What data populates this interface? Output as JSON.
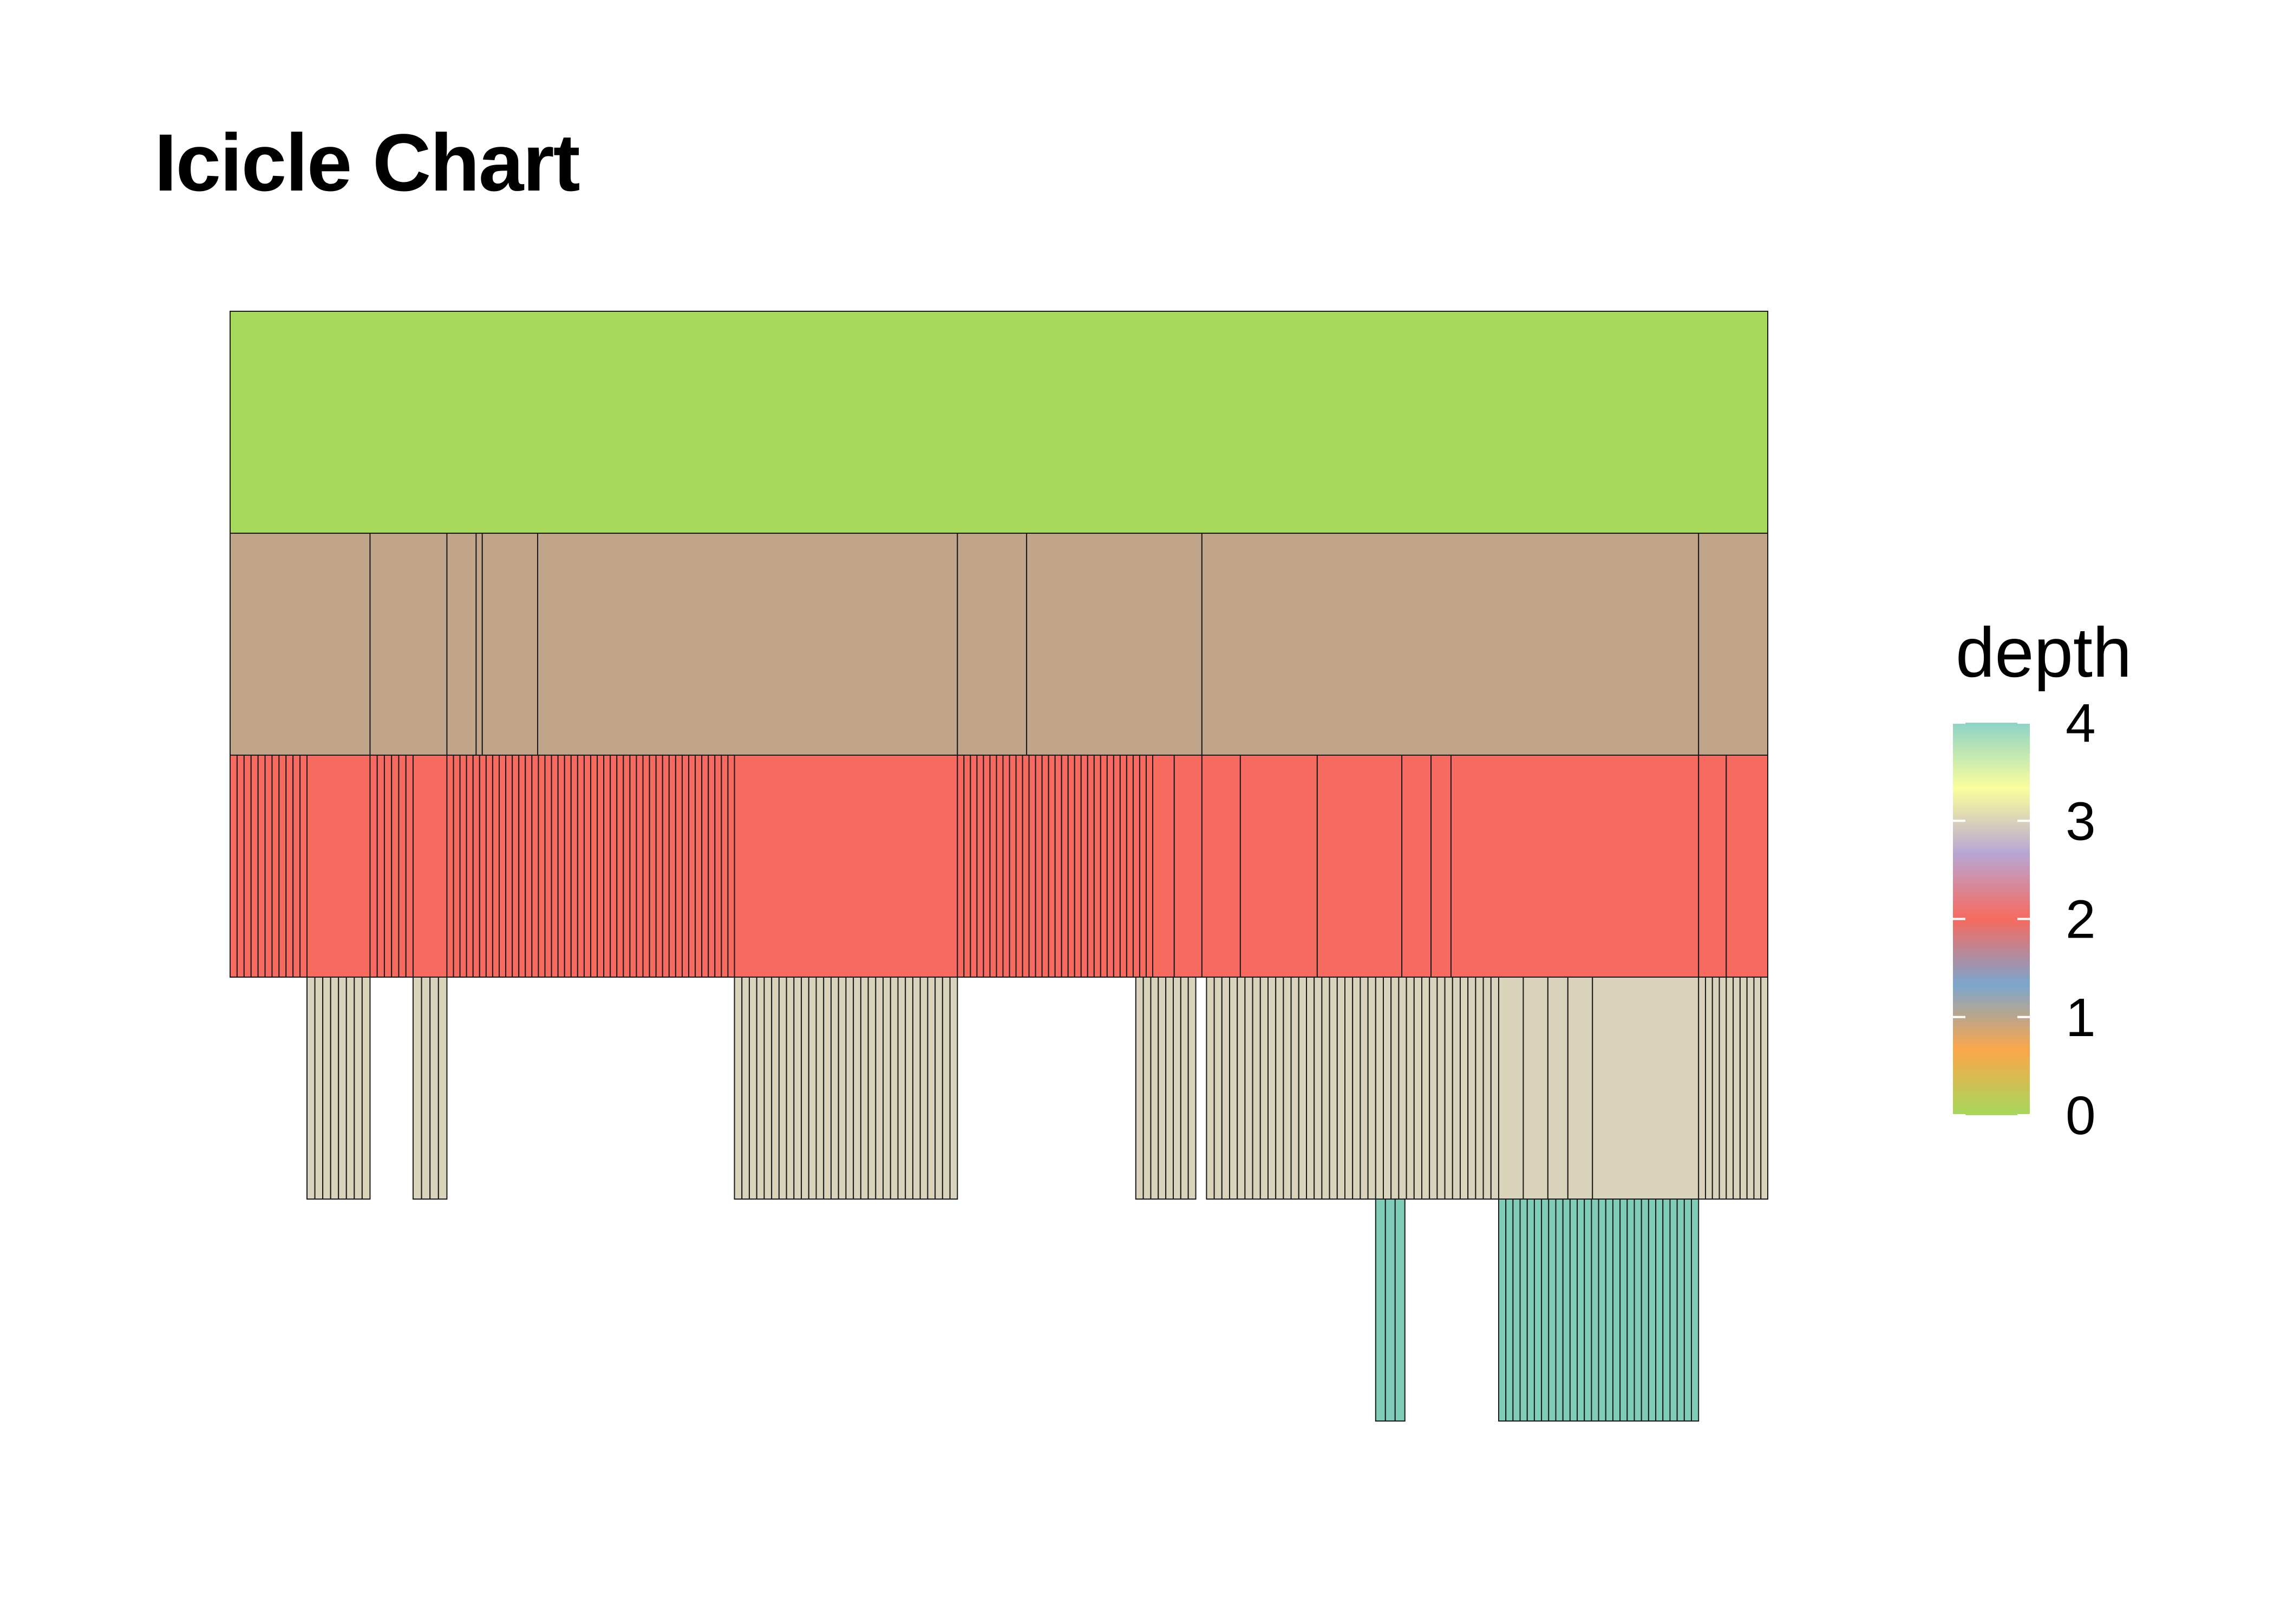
{
  "chart_data": {
    "type": "icicle",
    "title": "Icicle Chart",
    "legend": {
      "title": "depth",
      "placement": "right",
      "ticks": [
        "0",
        "1",
        "2",
        "3",
        "4"
      ],
      "gradient": [
        "#a6d85b",
        "#fca64a",
        "#7ba6cc",
        "#f76a5f",
        "#b8a6d4",
        "#fbfe9c",
        "#8dd3c7"
      ]
    },
    "level_colors": [
      "#a6d95b",
      "#c1a58b",
      "#f76a60",
      "#d9d3bc",
      "#7fcdb8"
    ],
    "x_extent": [
      0,
      1
    ],
    "levels": [
      {
        "depth": 0,
        "boundaries": [
          0,
          1
        ]
      },
      {
        "depth": 1,
        "boundaries": [
          0,
          0.091,
          0.141,
          0.16,
          0.164,
          0.2,
          0.473,
          0.518,
          0.632,
          0.955,
          1
        ]
      },
      {
        "depth": 2,
        "segments": [
          {
            "start": 0,
            "end": 0.05,
            "count": 11
          },
          {
            "start": 0.05,
            "end": 0.091,
            "count": 1
          },
          {
            "start": 0.091,
            "end": 0.119,
            "count": 6
          },
          {
            "start": 0.119,
            "end": 0.141,
            "count": 1
          },
          {
            "start": 0.141,
            "end": 0.328,
            "count": 44
          },
          {
            "start": 0.328,
            "end": 0.473,
            "count": 1
          },
          {
            "start": 0.473,
            "end": 0.6,
            "count": 30
          },
          {
            "start": 0.6,
            "end": 0.614,
            "count": 1
          },
          {
            "start": 0.614,
            "end": 0.632,
            "count": 1
          },
          {
            "start": 0.632,
            "end": 0.657,
            "count": 1
          },
          {
            "start": 0.657,
            "end": 0.707,
            "count": 1
          },
          {
            "start": 0.707,
            "end": 0.762,
            "count": 1
          },
          {
            "start": 0.762,
            "end": 0.781,
            "count": 1
          },
          {
            "start": 0.781,
            "end": 0.794,
            "count": 1
          },
          {
            "start": 0.794,
            "end": 0.955,
            "count": 1
          },
          {
            "start": 0.955,
            "end": 0.973,
            "count": 1
          },
          {
            "start": 0.973,
            "end": 1,
            "count": 1
          }
        ]
      },
      {
        "depth": 3,
        "segments": [
          {
            "start": 0.05,
            "end": 0.091,
            "count": 8
          },
          {
            "start": 0.119,
            "end": 0.141,
            "count": 4
          },
          {
            "start": 0.328,
            "end": 0.473,
            "count": 30
          },
          {
            "start": 0.589,
            "end": 0.628,
            "count": 8
          },
          {
            "start": 0.635,
            "end": 0.745,
            "count": 22
          },
          {
            "start": 0.745,
            "end": 0.825,
            "count": 16
          },
          {
            "start": 0.825,
            "end": 0.857,
            "count": 2
          },
          {
            "start": 0.857,
            "end": 0.87,
            "count": 1
          },
          {
            "start": 0.87,
            "end": 0.886,
            "count": 1
          },
          {
            "start": 0.886,
            "end": 0.955,
            "count": 1
          },
          {
            "start": 0.955,
            "end": 1,
            "count": 10
          }
        ]
      },
      {
        "depth": 4,
        "segments": [
          {
            "start": 0.745,
            "end": 0.764,
            "count": 3
          },
          {
            "start": 0.825,
            "end": 0.955,
            "count": 28
          }
        ]
      }
    ]
  }
}
